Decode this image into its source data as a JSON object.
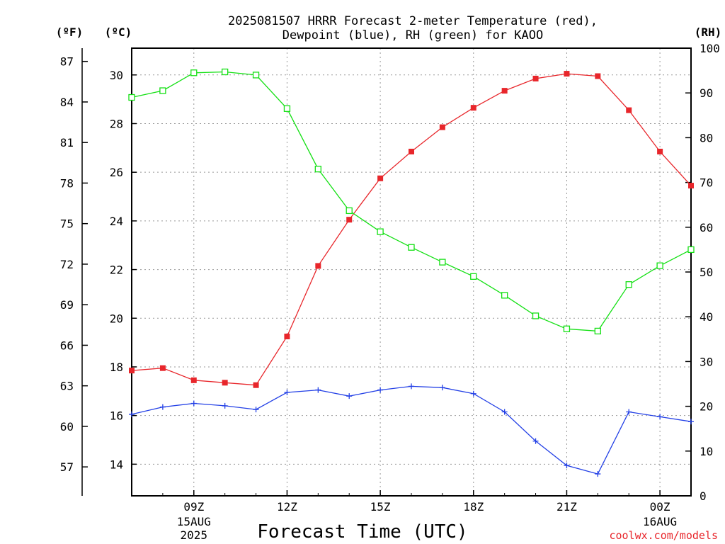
{
  "title": {
    "line1": "2025081507 HRRR Forecast 2-meter Temperature (red),",
    "line2": "Dewpoint (blue), RH (green) for KAOO"
  },
  "units": {
    "f": "(ºF)",
    "c": "(ºC)",
    "rh": "(RH)"
  },
  "xlabel": "Forecast Time (UTC)",
  "credit": "coolwx.com/models",
  "colors": {
    "temp": "#e8262b",
    "dew": "#2340e6",
    "rh": "#14e014",
    "credit": "#e8262b",
    "grid": "#999999"
  },
  "chart_data": {
    "type": "line",
    "x_hours_utc": [
      7,
      8,
      9,
      10,
      11,
      12,
      13,
      14,
      15,
      16,
      17,
      18,
      19,
      20,
      21,
      22,
      23,
      24,
      25
    ],
    "x_ticks": [
      {
        "hour": 9,
        "label": "09Z",
        "date": "15AUG",
        "year": "2025"
      },
      {
        "hour": 12,
        "label": "12Z",
        "date": "",
        "year": ""
      },
      {
        "hour": 15,
        "label": "15Z",
        "date": "",
        "year": ""
      },
      {
        "hour": 18,
        "label": "18Z",
        "date": "",
        "year": ""
      },
      {
        "hour": 21,
        "label": "21Z",
        "date": "",
        "year": ""
      },
      {
        "hour": 24,
        "label": "00Z",
        "date": "16AUG",
        "year": ""
      }
    ],
    "xlim": [
      7,
      25
    ],
    "ylim_c": [
      12.7,
      31.1
    ],
    "ylim_rh": [
      0,
      100
    ],
    "y_ticks_c": [
      "14",
      "16",
      "18",
      "20",
      "22",
      "24",
      "26",
      "28",
      "30"
    ],
    "y_ticks_f": [
      "57",
      "60",
      "63",
      "66",
      "69",
      "72",
      "75",
      "78",
      "81",
      "84",
      "87"
    ],
    "y_ticks_rh": [
      "0",
      "10",
      "20",
      "30",
      "40",
      "50",
      "60",
      "70",
      "80",
      "90",
      "100"
    ],
    "grid": true,
    "series": [
      {
        "name": "Temperature",
        "axis": "c",
        "marker": "filled-square",
        "values": [
          17.85,
          17.95,
          17.45,
          17.35,
          17.25,
          19.25,
          22.15,
          24.05,
          25.75,
          26.85,
          27.85,
          28.65,
          29.35,
          29.85,
          30.05,
          29.95,
          28.55,
          26.85,
          25.45
        ]
      },
      {
        "name": "Dewpoint",
        "axis": "c",
        "marker": "plus",
        "values": [
          16.05,
          16.35,
          16.5,
          16.4,
          16.25,
          16.95,
          17.05,
          16.8,
          17.05,
          17.2,
          17.15,
          16.9,
          16.15,
          14.95,
          13.95,
          13.6,
          16.15,
          15.95,
          15.75
        ]
      },
      {
        "name": "RH",
        "axis": "rh",
        "marker": "open-square",
        "values": [
          89,
          90.5,
          94.5,
          94.7,
          94,
          86.5,
          73,
          63.7,
          59,
          55.5,
          52.2,
          49,
          44.8,
          40.2,
          37.3,
          36.8,
          47.2,
          51.4,
          55
        ]
      }
    ]
  }
}
